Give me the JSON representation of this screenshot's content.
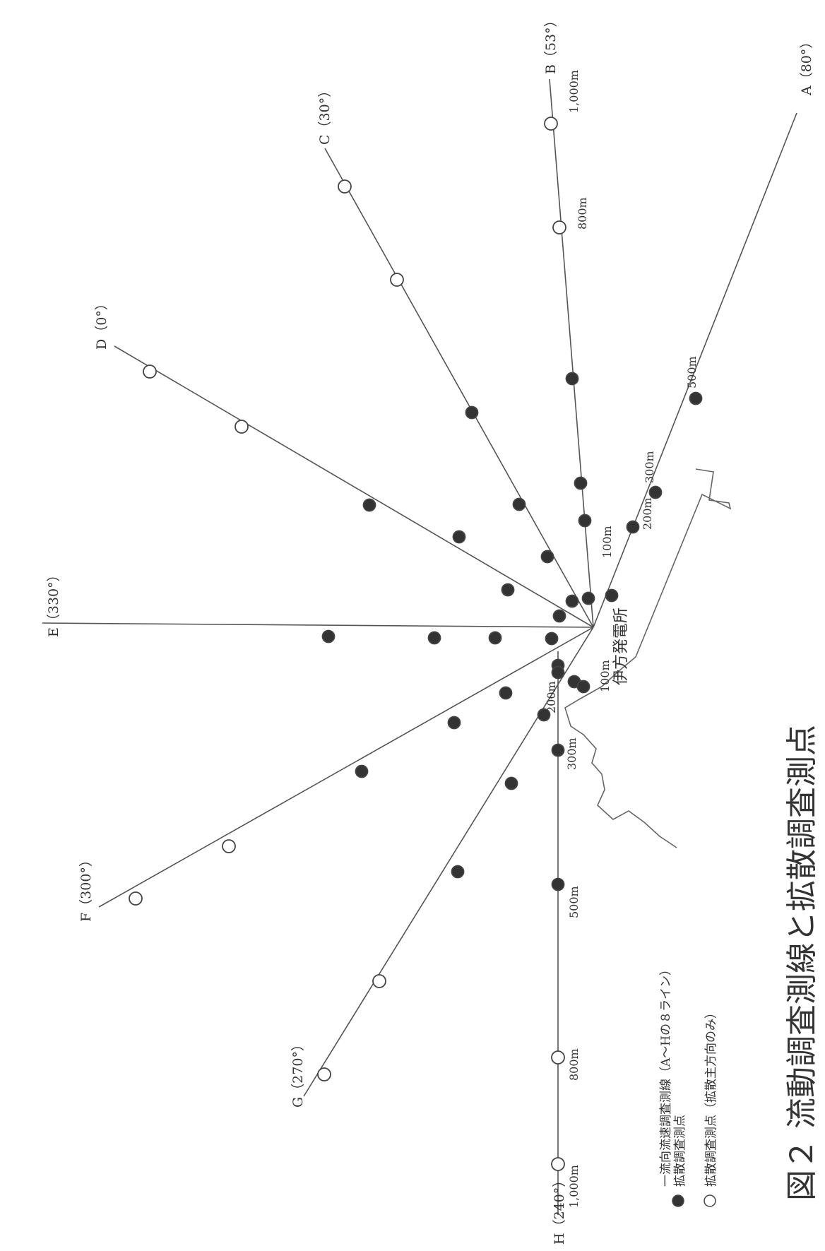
{
  "figure": {
    "caption": "図２ 流動調査測線と拡散調査測点",
    "plant_label": "伊方発電所"
  },
  "legend": {
    "line": "一流向流速調査測線（A〜Hの８ライン）",
    "filled": "拡散調査測点",
    "open": "拡散調査測点（拡散主方向のみ）"
  },
  "lines": [
    {
      "id": "A",
      "label": "A（80°）"
    },
    {
      "id": "B",
      "label": "B（53°）"
    },
    {
      "id": "C",
      "label": "C（30°）"
    },
    {
      "id": "D",
      "label": "D（0°）"
    },
    {
      "id": "E",
      "label": "E（330°）"
    },
    {
      "id": "F",
      "label": "F（300°）"
    },
    {
      "id": "G",
      "label": "G（270°）"
    },
    {
      "id": "H",
      "label": "H（240°）"
    }
  ],
  "distance_labels": {
    "a_100": "100m",
    "a_200": "200m",
    "a_300": "300m",
    "a_500": "500m",
    "b_800": "800m",
    "b_1000": "1,000m",
    "h_100": "100m",
    "h_200": "200m",
    "h_300": "300m",
    "h_500": "500m",
    "h_800": "800m",
    "h_1000": "1,000m"
  }
}
